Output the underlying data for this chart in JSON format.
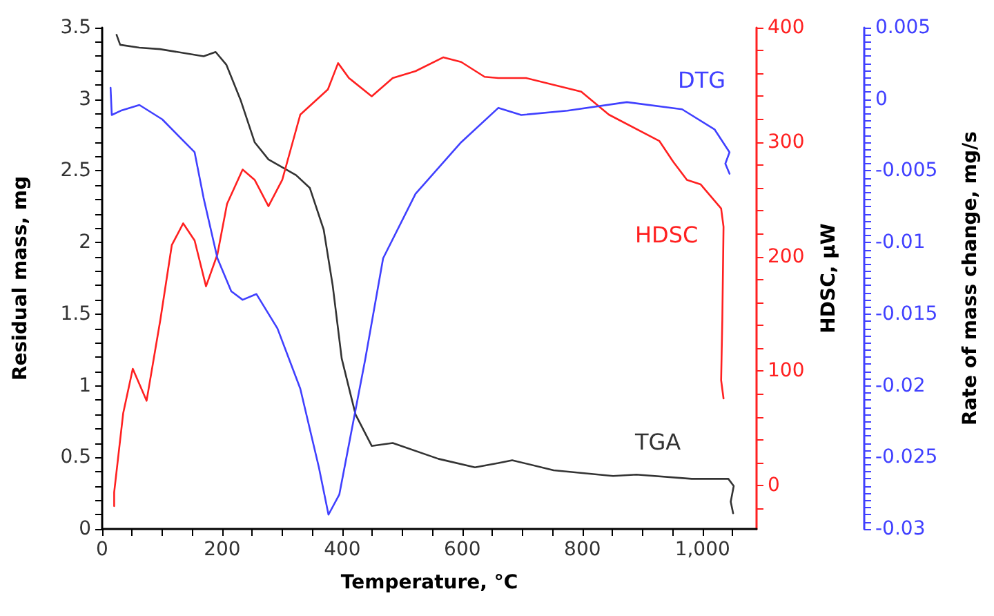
{
  "chart_data": {
    "type": "line",
    "xlabel": "Temperature, °C",
    "ylabel": "Residual mass, mg",
    "y2label": "HDSC, µW",
    "y3label": "Rate of mass change, mg/s",
    "xlim": [
      0,
      1090
    ],
    "xticks": [
      0,
      200,
      400,
      600,
      800,
      {
        "value": 1000,
        "label": "1,000"
      }
    ],
    "ylim": [
      0,
      3.5
    ],
    "yticks": [
      0,
      0.5,
      1,
      1.5,
      2,
      2.5,
      3,
      3.5
    ],
    "y2lim": [
      -38,
      400
    ],
    "y2ticks": [
      0,
      100,
      200,
      300,
      400
    ],
    "y3lim": [
      -0.03,
      0.005
    ],
    "y3ticks": [
      -0.03,
      -0.025,
      -0.02,
      -0.015,
      -0.01,
      -0.005,
      0,
      0.005
    ],
    "grid": false,
    "legend": false,
    "marker": "none",
    "line_style": "solid",
    "series": [
      {
        "name": "TGA",
        "color": "#333333",
        "x": [
          24,
          30,
          62,
          96,
          169,
          189,
          207,
          231,
          254,
          277,
          323,
          346,
          369,
          384,
          399,
          422,
          449,
          484,
          560,
          621,
          660,
          683,
          752,
          851,
          890,
          982,
          1043,
          1052,
          1047,
          1051
        ],
        "values": [
          3.45,
          3.38,
          3.36,
          3.35,
          3.3,
          3.33,
          3.24,
          2.99,
          2.7,
          2.58,
          2.47,
          2.38,
          2.09,
          1.7,
          1.19,
          0.8,
          0.58,
          0.6,
          0.49,
          0.43,
          0.46,
          0.48,
          0.41,
          0.37,
          0.38,
          0.35,
          0.35,
          0.3,
          0.19,
          0.11
        ]
      },
      {
        "name": "HDSC",
        "color": "#ff2020",
        "axis": "y2",
        "x": [
          20,
          20,
          35,
          51,
          74,
          97,
          116,
          135,
          154,
          173,
          192,
          208,
          234,
          254,
          277,
          300,
          330,
          376,
          393,
          411,
          449,
          484,
          522,
          568,
          598,
          637,
          660,
          706,
          798,
          844,
          928,
          951,
          974,
          997,
          1031,
          1035,
          1033,
          1031,
          1035
        ],
        "values": [
          -18,
          -6,
          63,
          102,
          74,
          145,
          210,
          229,
          214,
          174,
          202,
          246,
          276,
          267,
          244,
          267,
          324,
          346,
          369,
          356,
          340,
          356,
          362,
          374,
          370,
          357,
          356,
          356,
          344,
          324,
          301,
          283,
          267,
          263,
          242,
          226,
          145,
          92,
          76
        ]
      },
      {
        "name": "DTG",
        "color": "#4040ff",
        "axis": "y3",
        "x": [
          14,
          16,
          31,
          62,
          100,
          154,
          169,
          192,
          215,
          234,
          257,
          292,
          330,
          361,
          377,
          395,
          438,
          468,
          522,
          598,
          660,
          698,
          775,
          874,
          966,
          1020,
          1045,
          1038,
          1045
        ],
        "values": [
          0.0008,
          -0.0011,
          -0.0008,
          -0.0004,
          -0.0014,
          -0.0037,
          -0.0069,
          -0.0111,
          -0.0134,
          -0.014,
          -0.0136,
          -0.016,
          -0.0202,
          -0.0257,
          -0.029,
          -0.0276,
          -0.0182,
          -0.0111,
          -0.0066,
          -0.003,
          -0.0006,
          -0.0011,
          -0.0008,
          -0.0002,
          -0.0007,
          -0.0021,
          -0.0037,
          -0.0045,
          -0.0052
        ]
      }
    ]
  }
}
